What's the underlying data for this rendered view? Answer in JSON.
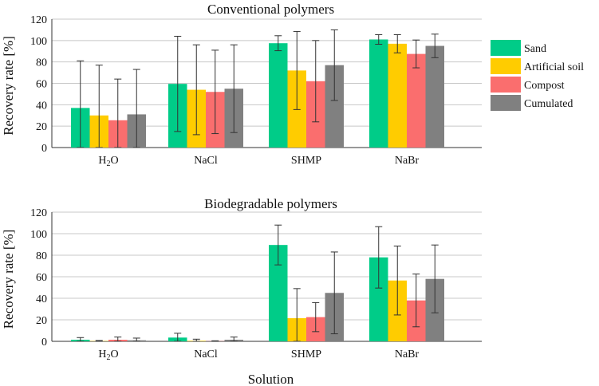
{
  "chart_data": [
    {
      "type": "bar",
      "title": "Conventional polymers",
      "xlabel": "",
      "ylabel": "Recovery rate [%]",
      "ylim": [
        0,
        120
      ],
      "yticks": [
        0,
        20,
        40,
        60,
        80,
        100,
        120
      ],
      "grid": "horizontal",
      "legend": "right",
      "categories": [
        "H2O",
        "NaCl",
        "SHMP",
        "NaBr"
      ],
      "series": [
        {
          "name": "Sand",
          "color": "#00cc88",
          "values": [
            37,
            59.5,
            97.5,
            101
          ],
          "errors": [
            44,
            44.5,
            7,
            4.5
          ]
        },
        {
          "name": "Artificial soil",
          "color": "#ffcc00",
          "values": [
            30,
            54,
            72,
            97
          ],
          "errors": [
            47,
            42,
            36.5,
            8.5
          ]
        },
        {
          "name": "Compost",
          "color": "#fa6e6e",
          "values": [
            25.5,
            52,
            62,
            87.5
          ],
          "errors": [
            38.5,
            39,
            38,
            13
          ]
        },
        {
          "name": "Cumulated",
          "color": "#808080",
          "values": [
            31,
            55,
            77,
            95
          ],
          "errors": [
            42,
            41,
            33,
            11
          ]
        }
      ]
    },
    {
      "type": "bar",
      "title": "Biodegradable polymers",
      "xlabel": "Solution",
      "ylabel": "Recovery rate [%]",
      "ylim": [
        0,
        120
      ],
      "yticks": [
        0,
        20,
        40,
        60,
        80,
        100,
        120
      ],
      "grid": "horizontal",
      "categories": [
        "H2O",
        "NaCl",
        "SHMP",
        "NaBr"
      ],
      "series": [
        {
          "name": "Sand",
          "color": "#00cc88",
          "values": [
            1.5,
            3.5,
            89.5,
            78
          ],
          "errors": [
            2,
            4,
            18.5,
            28.5
          ]
        },
        {
          "name": "Artificial soil",
          "color": "#ffcc00",
          "values": [
            0.3,
            0.5,
            21.5,
            56.5
          ],
          "errors": [
            0.5,
            1.5,
            27.5,
            32
          ]
        },
        {
          "name": "Compost",
          "color": "#fa6e6e",
          "values": [
            1.5,
            0.2,
            22.5,
            38
          ],
          "errors": [
            2.5,
            0.3,
            13.5,
            24.5
          ]
        },
        {
          "name": "Cumulated",
          "color": "#808080",
          "values": [
            1,
            1.5,
            45,
            58
          ],
          "errors": [
            2,
            2.5,
            38,
            31.5
          ]
        }
      ]
    }
  ]
}
